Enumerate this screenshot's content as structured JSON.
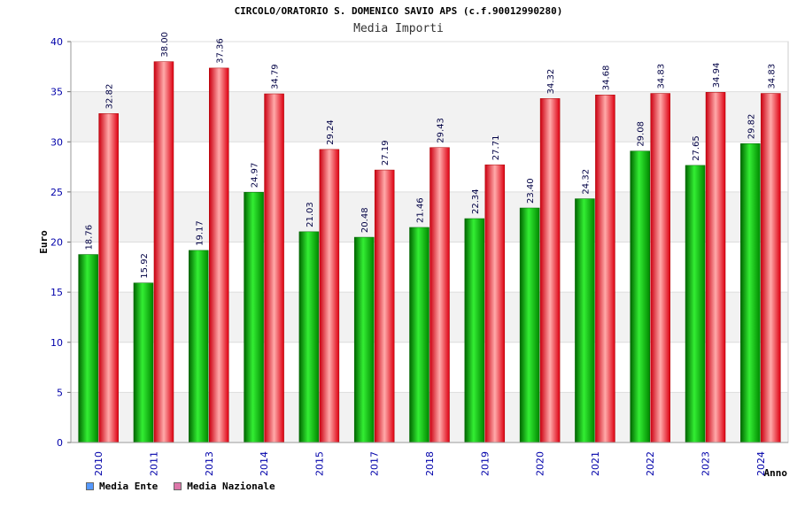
{
  "header": {
    "title": "CIRCOLO/ORATORIO S. DOMENICO SAVIO APS (c.f.90012990280)",
    "subtitle": "Media Importi"
  },
  "chart_data": {
    "type": "bar",
    "title": "Media Importi",
    "xlabel": "Anno",
    "ylabel": "Euro",
    "ylim": [
      0,
      40
    ],
    "yticks": [
      0,
      5,
      10,
      15,
      20,
      25,
      30,
      35,
      40
    ],
    "grid": true,
    "legend_position": "bottom-left",
    "categories": [
      "2010",
      "2011",
      "2013",
      "2014",
      "2015",
      "2017",
      "2018",
      "2019",
      "2020",
      "2021",
      "2022",
      "2023",
      "2024"
    ],
    "series": [
      {
        "name": "Media Ente",
        "color": "#00b000",
        "legend_color": "#5599ff",
        "values": [
          18.76,
          15.92,
          19.17,
          24.97,
          21.03,
          20.48,
          21.46,
          22.34,
          23.4,
          24.32,
          29.08,
          27.65,
          29.82
        ],
        "labels": [
          "18.76",
          "15.92",
          "19.17",
          "24.97",
          "21.03",
          "20.48",
          "21.46",
          "22.34",
          "23.40",
          "24.32",
          "29.08",
          "27.65",
          "29.82"
        ]
      },
      {
        "name": "Media Nazionale",
        "color": "#ee1122",
        "legend_color": "#dd77aa",
        "values": [
          32.82,
          38.0,
          37.36,
          34.79,
          29.24,
          27.19,
          29.43,
          27.71,
          34.32,
          34.68,
          34.83,
          34.94,
          34.83
        ],
        "labels": [
          "32.82",
          "38.00",
          "37.36",
          "34.79",
          "29.24",
          "27.19",
          "29.43",
          "27.71",
          "34.32",
          "34.68",
          "34.83",
          "34.94",
          "34.83"
        ]
      }
    ]
  }
}
